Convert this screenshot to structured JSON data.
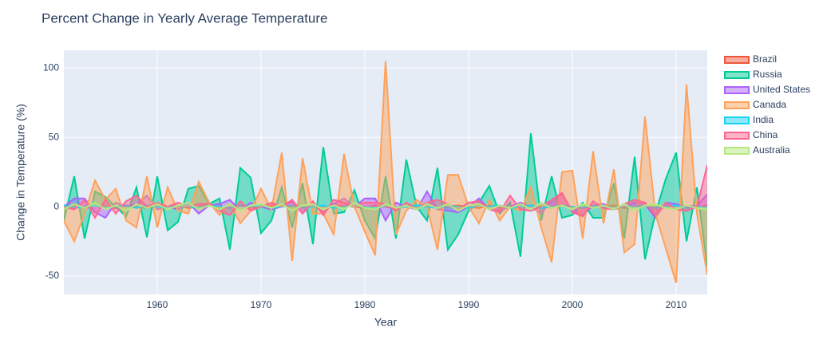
{
  "chart_data": {
    "type": "area",
    "title": "Percent Change in Yearly Average Temperature",
    "x_label": "Year",
    "y_label": "Change in Temperature (%)",
    "x": [
      1951,
      1952,
      1953,
      1954,
      1955,
      1956,
      1957,
      1958,
      1959,
      1960,
      1961,
      1962,
      1963,
      1964,
      1965,
      1966,
      1967,
      1968,
      1969,
      1970,
      1971,
      1972,
      1973,
      1974,
      1975,
      1976,
      1977,
      1978,
      1979,
      1980,
      1981,
      1982,
      1983,
      1984,
      1985,
      1986,
      1987,
      1988,
      1989,
      1990,
      1991,
      1992,
      1993,
      1994,
      1995,
      1996,
      1997,
      1998,
      1999,
      2000,
      2001,
      2002,
      2003,
      2004,
      2005,
      2006,
      2007,
      2008,
      2009,
      2010,
      2011,
      2012,
      2013
    ],
    "xlim": [
      1951,
      2013
    ],
    "xticks": [
      1960,
      1970,
      1980,
      1990,
      2000,
      2010
    ],
    "ylim": [
      -63.2,
      112.8
    ],
    "yticks": [
      -50,
      0,
      50,
      100
    ],
    "grid": true,
    "legend": "right",
    "series": [
      {
        "name": "Brazil",
        "color": "#EF553B",
        "values": [
          0,
          1,
          -1,
          1,
          0,
          -1,
          1,
          0,
          -1,
          1,
          0,
          1,
          -1,
          0,
          1,
          -1,
          0,
          1,
          -1,
          0,
          1,
          1,
          -1,
          0,
          1,
          -1,
          0,
          1,
          0,
          -1,
          1,
          0,
          -1,
          1,
          0,
          1,
          -1,
          0,
          1,
          0,
          -1,
          1,
          0,
          -1,
          1,
          0,
          1,
          -1,
          1,
          0,
          -1,
          1,
          0,
          1,
          -1,
          0,
          1,
          0,
          -1,
          1,
          0,
          -1,
          1
        ]
      },
      {
        "name": "Russia",
        "color": "#00CC96",
        "values": [
          -10,
          22,
          -23,
          11,
          7,
          0,
          -7,
          14,
          -22,
          22,
          -17,
          -11,
          13,
          15,
          2,
          6,
          -31,
          28,
          21,
          -19,
          -10,
          14,
          -15,
          17,
          -27,
          43,
          -5,
          -4,
          12,
          -10,
          -23,
          22,
          -23,
          34,
          0,
          -10,
          28,
          -31,
          -20,
          -3,
          3,
          15,
          -5,
          3,
          -36,
          53,
          -10,
          22,
          -8,
          -6,
          3,
          -8,
          -8,
          17,
          -23,
          36,
          -38,
          -5,
          20,
          39,
          -25,
          14,
          -43
        ]
      },
      {
        "name": "United States",
        "color": "#AB63FA",
        "values": [
          0,
          6,
          6,
          -4,
          -8,
          3,
          0,
          2,
          8,
          -2,
          0,
          -2,
          3,
          -5,
          1,
          2,
          5,
          -3,
          3,
          0,
          -2,
          0,
          4,
          -5,
          3,
          -4,
          2,
          6,
          0,
          6,
          6,
          -10,
          3,
          0,
          -2,
          11,
          -2,
          -3,
          -4,
          0,
          6,
          -2,
          -3,
          0,
          3,
          0,
          -5,
          5,
          9,
          -3,
          -6,
          1,
          2,
          -2,
          0,
          3,
          2,
          -8,
          3,
          2,
          0,
          1,
          9
        ]
      },
      {
        "name": "Canada",
        "color": "#FFA15A",
        "values": [
          -10,
          -25,
          -5,
          19,
          5,
          13,
          -10,
          -15,
          22,
          -15,
          14,
          -3,
          -5,
          18,
          3,
          -6,
          2,
          -12,
          -3,
          13,
          -2,
          39,
          -39,
          35,
          -5,
          -5,
          -20,
          38,
          0,
          -18,
          -35,
          105,
          -20,
          -3,
          5,
          0,
          -31,
          23,
          23,
          0,
          -12,
          5,
          -10,
          0,
          -3,
          14,
          -15,
          -40,
          25,
          26,
          -23,
          40,
          -12,
          27,
          -33,
          -27,
          65,
          -5,
          -30,
          -55,
          88,
          -5,
          -49
        ]
      },
      {
        "name": "India",
        "color": "#19D3F3",
        "values": [
          1,
          -1,
          0,
          1,
          -1,
          0,
          1,
          -1,
          1,
          0,
          -1,
          1,
          0,
          -1,
          1,
          0,
          -1,
          1,
          0,
          1,
          -1,
          0,
          1,
          -1,
          0,
          1,
          -1,
          0,
          1,
          0,
          -1,
          1,
          -1,
          0,
          1,
          0,
          -1,
          1,
          0,
          -1,
          1,
          0,
          1,
          -1,
          0,
          1,
          -1,
          0,
          1,
          0,
          -1,
          1,
          0,
          -1,
          1,
          0,
          1,
          -1,
          0,
          1,
          -1,
          0,
          -1
        ]
      },
      {
        "name": "China",
        "color": "#FF6692",
        "values": [
          0,
          -2,
          5,
          -8,
          5,
          -5,
          4,
          8,
          0,
          3,
          0,
          3,
          0,
          2,
          2,
          -3,
          -6,
          4,
          -3,
          0,
          3,
          0,
          5,
          -5,
          4,
          -6,
          5,
          3,
          1,
          3,
          3,
          2,
          -3,
          3,
          -2,
          3,
          5,
          2,
          -2,
          3,
          4,
          -2,
          -4,
          8,
          -2,
          -3,
          0,
          5,
          10,
          -4,
          -7,
          4,
          -1,
          -2,
          2,
          5,
          3,
          -6,
          3,
          -2,
          -3,
          0,
          30
        ]
      },
      {
        "name": "Australia",
        "color": "#B6E880",
        "values": [
          -2,
          2,
          -1,
          3,
          -2,
          1,
          -3,
          2,
          -1,
          2,
          -2,
          1,
          3,
          -2,
          1,
          -2,
          2,
          -3,
          1,
          2,
          -1,
          2,
          -3,
          1,
          2,
          -2,
          1,
          -2,
          3,
          -1,
          -2,
          2,
          -1,
          1,
          -2,
          2,
          -1,
          2,
          -3,
          1,
          2,
          -2,
          1,
          -1,
          2,
          -2,
          3,
          -1,
          1,
          -2,
          2,
          -1,
          1,
          -2,
          2,
          -3,
          1,
          2,
          -1,
          -2,
          1,
          -1,
          -2
        ]
      }
    ]
  }
}
